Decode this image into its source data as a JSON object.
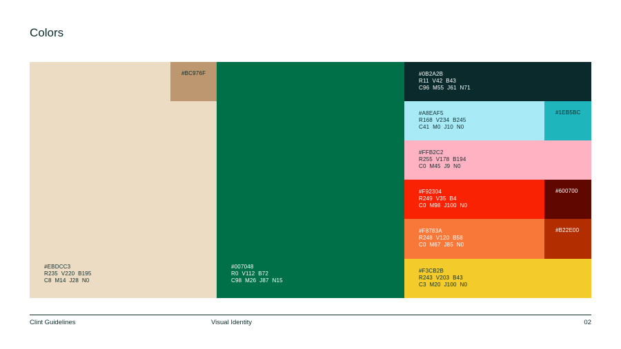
{
  "title": "Colors",
  "swatches": [
    {
      "hex": "#EBDCC3",
      "rgb": "R235  V220  B195",
      "cmyk": "C8  M14  J28  N0"
    },
    {
      "hex": "#007048",
      "rgb": "R0  V112  B72",
      "cmyk": "C98  M26  J87  N15"
    },
    {
      "hex": "#0B2A2B",
      "rgb": "R11  V42  B43",
      "cmyk": "C96  M55  J61  N71"
    },
    {
      "hex": "#A8EAF5",
      "rgb": "R168  V234  B245",
      "cmyk": "C41  M0  J10  N0"
    },
    {
      "hex": "#FFB2C2",
      "rgb": "R255  V178  B194",
      "cmyk": "C0  M45  J9  N0"
    },
    {
      "hex": "#F92304",
      "rgb": "R249  V35  B4",
      "cmyk": "C0  M98  J100  N0"
    },
    {
      "hex": "#F8783A",
      "rgb": "R248  V120  B58",
      "cmyk": "C0  M67  J85  N0"
    },
    {
      "hex": "#F3CB2B",
      "rgb": "R243  V203  B43",
      "cmyk": "C3  M20  J100  N0"
    }
  ],
  "accents": [
    {
      "hex": "#BC976F"
    },
    {
      "hex": "#1EB5BC"
    },
    {
      "hex": "#600700"
    },
    {
      "hex": "#B22E00"
    }
  ],
  "footer": {
    "left": "Clint Guidelines",
    "center": "Visual Identity",
    "page": "02"
  }
}
